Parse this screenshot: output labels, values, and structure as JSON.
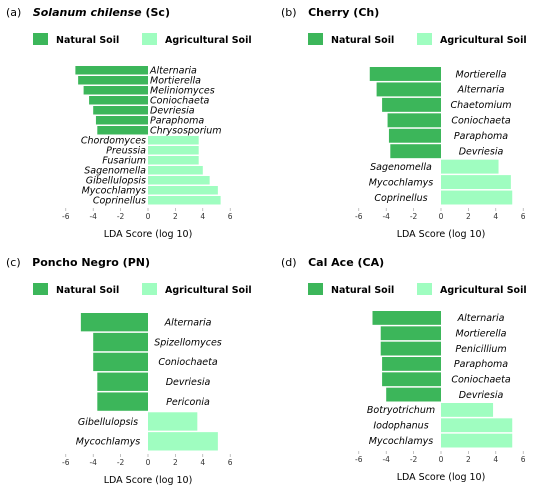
{
  "colors": {
    "natural": "#3cb65a",
    "agricultural": "#9ffdc0"
  },
  "chart_data": [
    {
      "type": "bar",
      "panel_label": "(a)",
      "title": "Solanum chilense (Sc)",
      "title_italic": "Solanum chilense",
      "title_rest": " (Sc)",
      "legend": [
        "Natural Soil",
        "Agricultural Soil"
      ],
      "xlabel": "LDA Score (log 10)",
      "xlim": [
        -6,
        6
      ],
      "xticks": [
        "-6",
        "-4",
        "-2",
        "0",
        "2",
        "4",
        "6"
      ],
      "bars": [
        {
          "name": "Alternaria",
          "value": -5.3,
          "group": "natural"
        },
        {
          "name": "Mortierella",
          "value": -5.1,
          "group": "natural"
        },
        {
          "name": "Meliniomyces",
          "value": -4.7,
          "group": "natural"
        },
        {
          "name": "Coniochaeta",
          "value": -4.3,
          "group": "natural"
        },
        {
          "name": "Devriesia",
          "value": -4.0,
          "group": "natural"
        },
        {
          "name": "Paraphoma",
          "value": -3.8,
          "group": "natural"
        },
        {
          "name": "Chrysosporium",
          "value": -3.7,
          "group": "natural"
        },
        {
          "name": "Chordomyces",
          "value": 3.7,
          "group": "agricultural"
        },
        {
          "name": "Preussia",
          "value": 3.7,
          "group": "agricultural"
        },
        {
          "name": "Fusarium",
          "value": 3.7,
          "group": "agricultural"
        },
        {
          "name": "Sagenomella",
          "value": 4.0,
          "group": "agricultural"
        },
        {
          "name": "Gibellulopsis",
          "value": 4.5,
          "group": "agricultural"
        },
        {
          "name": "Mycochlamys",
          "value": 5.1,
          "group": "agricultural"
        },
        {
          "name": "Coprinellus",
          "value": 5.3,
          "group": "agricultural"
        }
      ]
    },
    {
      "type": "bar",
      "panel_label": "(b)",
      "title": "Cherry (Ch)",
      "title_italic": "",
      "title_rest": "Cherry (Ch)",
      "legend": [
        "Natural Soil",
        "Agricultural Soil"
      ],
      "xlabel": "LDA Score (log 10)",
      "xlim": [
        -6,
        6
      ],
      "xticks": [
        "-6",
        "-4",
        "-2",
        "0",
        "2",
        "4",
        "6"
      ],
      "bars": [
        {
          "name": "Mortierella",
          "value": -5.2,
          "group": "natural"
        },
        {
          "name": "Alternaria",
          "value": -4.7,
          "group": "natural"
        },
        {
          "name": "Chaetomium",
          "value": -4.3,
          "group": "natural"
        },
        {
          "name": "Coniochaeta",
          "value": -3.9,
          "group": "natural"
        },
        {
          "name": "Paraphoma",
          "value": -3.8,
          "group": "natural"
        },
        {
          "name": "Devriesia",
          "value": -3.7,
          "group": "natural"
        },
        {
          "name": "Sagenomella",
          "value": 4.2,
          "group": "agricultural"
        },
        {
          "name": "Mycochlamys",
          "value": 5.1,
          "group": "agricultural"
        },
        {
          "name": "Coprinellus",
          "value": 5.2,
          "group": "agricultural"
        }
      ]
    },
    {
      "type": "bar",
      "panel_label": "(c)",
      "title": "Poncho Negro (PN)",
      "title_italic": "",
      "title_rest": "Poncho Negro (PN)",
      "legend": [
        "Natural Soil",
        "Agricultural Soil"
      ],
      "xlabel": "LDA Score (log 10)",
      "xlim": [
        -6,
        6
      ],
      "xticks": [
        "-6",
        "-4",
        "-2",
        "0",
        "2",
        "4",
        "6"
      ],
      "bars": [
        {
          "name": "Alternaria",
          "value": -4.9,
          "group": "natural"
        },
        {
          "name": "Spizellomyces",
          "value": -4.0,
          "group": "natural"
        },
        {
          "name": "Coniochaeta",
          "value": -4.0,
          "group": "natural"
        },
        {
          "name": "Devriesia",
          "value": -3.7,
          "group": "natural"
        },
        {
          "name": "Periconia",
          "value": -3.7,
          "group": "natural"
        },
        {
          "name": "Gibellulopsis",
          "value": 3.6,
          "group": "agricultural"
        },
        {
          "name": "Mycochlamys",
          "value": 5.1,
          "group": "agricultural"
        }
      ]
    },
    {
      "type": "bar",
      "panel_label": "(d)",
      "title": "Cal Ace (CA)",
      "title_italic": "",
      "title_rest": "Cal Ace (CA)",
      "legend": [
        "Natural Soil",
        "Agricultural Soil"
      ],
      "xlabel": "LDA Score (log 10)",
      "xlim": [
        -6,
        6
      ],
      "xticks": [
        "-6",
        "-4",
        "-2",
        "0",
        "2",
        "4",
        "6"
      ],
      "bars": [
        {
          "name": "Alternaria",
          "value": -5.0,
          "group": "natural"
        },
        {
          "name": "Mortierella",
          "value": -4.4,
          "group": "natural"
        },
        {
          "name": "Penicillium",
          "value": -4.4,
          "group": "natural"
        },
        {
          "name": "Paraphoma",
          "value": -4.3,
          "group": "natural"
        },
        {
          "name": "Coniochaeta",
          "value": -4.3,
          "group": "natural"
        },
        {
          "name": "Devriesia",
          "value": -4.0,
          "group": "natural"
        },
        {
          "name": "Botryotrichum",
          "value": 3.8,
          "group": "agricultural"
        },
        {
          "name": "Iodophanus",
          "value": 5.2,
          "group": "agricultural"
        },
        {
          "name": "Mycochlamys",
          "value": 5.2,
          "group": "agricultural"
        }
      ]
    }
  ]
}
